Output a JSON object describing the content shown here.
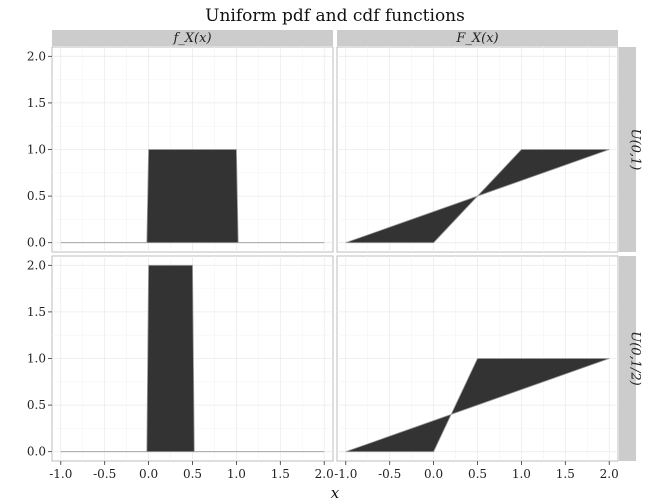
{
  "chart_data": {
    "type": "area",
    "title": "Uniform pdf and cdf functions",
    "xlabel": "x",
    "ylabel": "",
    "xlim": [
      -1.1,
      2.1
    ],
    "ylim": [
      -0.1,
      2.1
    ],
    "x_ticks": [
      "-1.0",
      "-0.5",
      "0.0",
      "0.5",
      "1.0",
      "1.5",
      "2.0"
    ],
    "y_ticks": [
      "0.0",
      "0.5",
      "1.0",
      "1.5",
      "2.0"
    ],
    "columns": [
      "f_X(x)",
      "F_X(x)"
    ],
    "rows": [
      "U(0,1)",
      "U(0,1/2)"
    ],
    "fill_color": "#333333",
    "grid": true,
    "panels": [
      {
        "row": 0,
        "col": 0,
        "x": [
          -1.0,
          -0.02,
          0.0,
          1.0,
          1.02,
          2.0
        ],
        "y": [
          0,
          0,
          1,
          1,
          0,
          0
        ]
      },
      {
        "row": 0,
        "col": 1,
        "x": [
          -1.0,
          0.0,
          1.0,
          2.0
        ],
        "y": [
          0,
          0,
          1,
          1
        ]
      },
      {
        "row": 1,
        "col": 0,
        "x": [
          -1.0,
          -0.02,
          0.0,
          0.5,
          0.52,
          2.0
        ],
        "y": [
          0,
          0,
          2,
          2,
          0,
          0
        ]
      },
      {
        "row": 1,
        "col": 1,
        "x": [
          -1.0,
          0.0,
          0.5,
          2.0
        ],
        "y": [
          0,
          0,
          1,
          1
        ]
      }
    ]
  }
}
